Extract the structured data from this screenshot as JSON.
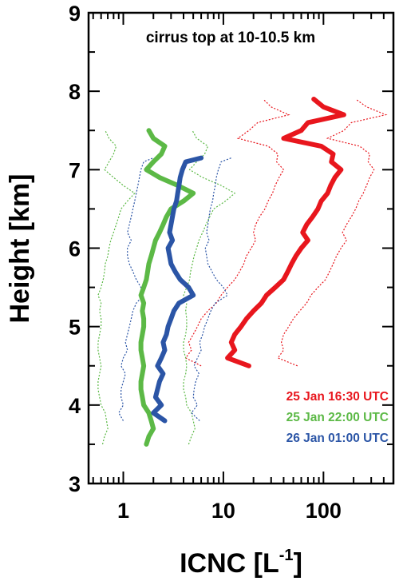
{
  "chart_data": {
    "type": "line",
    "xlabel": "ICNC [L",
    "xlabel_sup": "-1",
    "xlabel_end": "]",
    "ylabel": "Height [km]",
    "xscale": "log",
    "xlim": [
      0.45,
      500
    ],
    "ylim": [
      3,
      9
    ],
    "xticks": [
      {
        "v": 1,
        "label": "1"
      },
      {
        "v": 10,
        "label": "10"
      },
      {
        "v": 100,
        "label": "100"
      }
    ],
    "yticks": [
      {
        "v": 3,
        "label": "3"
      },
      {
        "v": 4,
        "label": "4"
      },
      {
        "v": 5,
        "label": "5"
      },
      {
        "v": 6,
        "label": "6"
      },
      {
        "v": 7,
        "label": "7"
      },
      {
        "v": 8,
        "label": "8"
      },
      {
        "v": 9,
        "label": "9"
      }
    ],
    "annotation": "cirrus top at 10-10.5 km",
    "grid": false,
    "legend_position": "bottom-right",
    "series": [
      {
        "name": "25 Jan 16:30 UTC",
        "color": "#e8161d",
        "y": [
          4.5,
          4.6,
          4.7,
          4.8,
          4.9,
          5.0,
          5.1,
          5.2,
          5.3,
          5.4,
          5.5,
          5.6,
          5.7,
          5.8,
          5.9,
          6.0,
          6.1,
          6.2,
          6.3,
          6.4,
          6.5,
          6.6,
          6.7,
          6.8,
          6.9,
          7.0,
          7.1,
          7.2,
          7.3,
          7.4,
          7.5,
          7.6,
          7.7,
          7.8,
          7.9
        ],
        "mean": [
          18,
          11,
          13,
          12,
          13,
          15,
          17,
          20,
          24,
          27,
          33,
          40,
          44,
          48,
          53,
          60,
          70,
          62,
          68,
          78,
          88,
          95,
          110,
          118,
          130,
          150,
          120,
          125,
          95,
          40,
          60,
          70,
          160,
          100,
          80
        ],
        "low": [
          6,
          4.2,
          4.8,
          4.5,
          5,
          5.5,
          6,
          7,
          8.5,
          9.5,
          11,
          13,
          14.5,
          16,
          17,
          19,
          21,
          20,
          21,
          23,
          26,
          28,
          31,
          33,
          36,
          40,
          34,
          35,
          28,
          14,
          18,
          22,
          45,
          30,
          25
        ],
        "high": [
          55,
          35,
          40,
          38,
          40,
          45,
          50,
          58,
          68,
          75,
          88,
          105,
          115,
          125,
          135,
          150,
          170,
          155,
          170,
          190,
          210,
          225,
          250,
          270,
          290,
          320,
          280,
          290,
          230,
          110,
          160,
          190,
          420,
          270,
          210
        ]
      },
      {
        "name": "25 Jan 22:00 UTC",
        "color": "#5cb946",
        "y": [
          3.5,
          3.6,
          3.7,
          3.8,
          3.9,
          4.0,
          4.1,
          4.2,
          4.3,
          4.4,
          4.5,
          4.6,
          4.7,
          4.8,
          4.9,
          5.0,
          5.1,
          5.2,
          5.3,
          5.4,
          5.5,
          5.6,
          5.7,
          5.8,
          5.9,
          6.0,
          6.1,
          6.2,
          6.3,
          6.4,
          6.5,
          6.6,
          6.7,
          6.8,
          6.9,
          7.0,
          7.1,
          7.2,
          7.3,
          7.4,
          7.5
        ],
        "mean": [
          1.7,
          1.8,
          2.0,
          1.9,
          1.8,
          1.6,
          1.55,
          1.5,
          1.5,
          1.55,
          1.6,
          1.55,
          1.5,
          1.5,
          1.55,
          1.6,
          1.6,
          1.55,
          1.6,
          1.5,
          1.6,
          1.7,
          1.75,
          1.8,
          1.9,
          2.0,
          2.1,
          2.3,
          2.5,
          2.7,
          3.0,
          4.0,
          5.0,
          3.5,
          2.3,
          1.7,
          2.0,
          2.4,
          2.6,
          2.0,
          1.8
        ],
        "low": [
          0.62,
          0.65,
          0.7,
          0.68,
          0.66,
          0.6,
          0.58,
          0.56,
          0.56,
          0.58,
          0.6,
          0.58,
          0.56,
          0.56,
          0.58,
          0.6,
          0.6,
          0.58,
          0.6,
          0.56,
          0.6,
          0.63,
          0.65,
          0.66,
          0.7,
          0.72,
          0.75,
          0.8,
          0.85,
          0.9,
          0.95,
          1.1,
          1.3,
          1.0,
          0.8,
          0.65,
          0.72,
          0.8,
          0.85,
          0.72,
          0.66
        ],
        "high": [
          4.5,
          4.8,
          5.2,
          5.0,
          4.8,
          4.3,
          4.2,
          4.0,
          4.0,
          4.2,
          4.3,
          4.2,
          4.0,
          4.0,
          4.2,
          4.3,
          4.3,
          4.2,
          4.3,
          4.0,
          4.3,
          4.6,
          4.7,
          4.9,
          5.1,
          5.4,
          5.7,
          6.2,
          6.7,
          7.3,
          8.0,
          10.5,
          13.0,
          9.5,
          6.2,
          4.6,
          5.4,
          6.5,
          7.0,
          5.4,
          4.9
        ]
      },
      {
        "name": "26 Jan 01:00 UTC",
        "color": "#2b55a6",
        "y": [
          3.8,
          3.9,
          4.0,
          4.1,
          4.2,
          4.3,
          4.4,
          4.5,
          4.6,
          4.7,
          4.8,
          4.9,
          5.0,
          5.1,
          5.2,
          5.3,
          5.4,
          5.5,
          5.6,
          5.7,
          5.8,
          5.9,
          6.0,
          6.1,
          6.2,
          6.3,
          6.4,
          6.5,
          6.6,
          6.7,
          6.8,
          6.9,
          7.0,
          7.1,
          7.15
        ],
        "mean": [
          2.6,
          2.0,
          2.4,
          2.1,
          2.2,
          2.3,
          2.5,
          2.2,
          2.4,
          2.6,
          2.5,
          2.7,
          2.8,
          3.0,
          3.2,
          3.6,
          5.0,
          4.5,
          3.7,
          3.3,
          3.0,
          2.9,
          2.8,
          3.1,
          2.9,
          3.0,
          3.1,
          3.2,
          3.4,
          3.5,
          3.6,
          3.7,
          3.9,
          4.2,
          6.0
        ],
        "low": [
          1.0,
          0.9,
          1.0,
          0.95,
          0.95,
          1.0,
          1.05,
          0.95,
          1.0,
          1.1,
          1.05,
          1.1,
          1.15,
          1.2,
          1.25,
          1.35,
          1.6,
          1.5,
          1.35,
          1.25,
          1.15,
          1.1,
          1.1,
          1.2,
          1.1,
          1.15,
          1.2,
          1.25,
          1.3,
          1.35,
          1.4,
          1.45,
          1.5,
          1.6,
          2.0
        ],
        "high": [
          5.8,
          4.8,
          5.5,
          5.0,
          5.1,
          5.3,
          5.7,
          5.1,
          5.5,
          6.0,
          5.8,
          6.2,
          6.5,
          7.0,
          7.5,
          8.3,
          11.0,
          10.0,
          8.5,
          7.7,
          7.0,
          6.8,
          6.6,
          7.2,
          6.8,
          7.0,
          7.2,
          7.4,
          7.8,
          8.0,
          8.3,
          8.5,
          8.9,
          9.5,
          12.0
        ]
      }
    ]
  }
}
